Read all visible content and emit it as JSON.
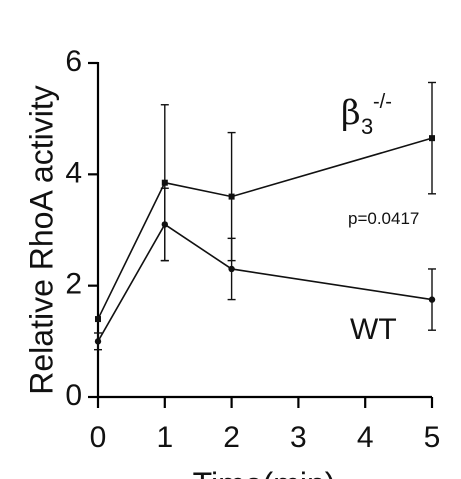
{
  "chart_data": {
    "type": "line",
    "xlabel": "Time(min)",
    "ylabel": "Relative RhoA activity",
    "xlim": [
      0,
      5
    ],
    "ylim": [
      0,
      6
    ],
    "x_ticks": [
      0,
      1,
      2,
      3,
      4,
      5
    ],
    "y_ticks": [
      0,
      2,
      4,
      6
    ],
    "grid": false,
    "series": [
      {
        "name": "β3-/-",
        "marker": "square",
        "x": [
          0,
          1,
          2,
          5
        ],
        "y": [
          1.4,
          3.85,
          3.6,
          4.65
        ],
        "err": [
          0.0,
          1.4,
          1.15,
          1.0
        ]
      },
      {
        "name": "WT",
        "marker": "circle",
        "x": [
          0,
          1,
          2,
          5
        ],
        "y": [
          1.0,
          3.1,
          2.3,
          1.75
        ],
        "err": [
          0.15,
          0.65,
          0.55,
          0.55
        ]
      }
    ],
    "annotations": {
      "p_value": "p=0.0417",
      "beta_symbol": "β",
      "beta_subscript": "3",
      "beta_superscript": "-/-",
      "wt_label": "WT"
    }
  }
}
